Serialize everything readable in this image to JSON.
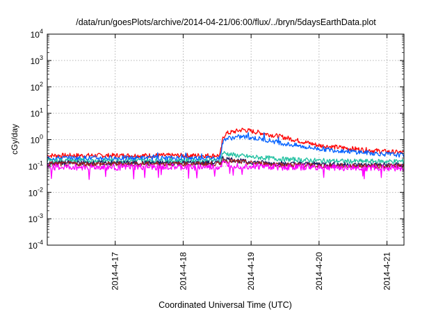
{
  "chart_data": {
    "type": "line",
    "title": "/data/run/goesPlots/archive/2014-04-21/06:00/flux/../bryn/5daysEarthData.plot",
    "xlabel": "Coordinated Universal Time (UTC)",
    "ylabel": "cGy/day",
    "yscale": "log",
    "ylim": [
      0.0001,
      10000
    ],
    "xlim": [
      "2014-04-16 00:00",
      "2014-04-21 06:00"
    ],
    "grid": true,
    "y_ticks": [
      {
        "value": 0.0001,
        "base": "10",
        "exp": "-4"
      },
      {
        "value": 0.001,
        "base": "10",
        "exp": "-3"
      },
      {
        "value": 0.01,
        "base": "10",
        "exp": "-2"
      },
      {
        "value": 0.1,
        "base": "10",
        "exp": "-1"
      },
      {
        "value": 1,
        "base": "10",
        "exp": "0"
      },
      {
        "value": 10,
        "base": "10",
        "exp": "1"
      },
      {
        "value": 100,
        "base": "10",
        "exp": "2"
      },
      {
        "value": 1000,
        "base": "10",
        "exp": "3"
      },
      {
        "value": 10000,
        "base": "10",
        "exp": "4"
      }
    ],
    "x_ticks": [
      {
        "value": "2014-04-17 00:00",
        "label": "2014-4-17"
      },
      {
        "value": "2014-04-18 00:00",
        "label": "2014-4-18"
      },
      {
        "value": "2014-04-19 00:00",
        "label": "2014-4-19"
      },
      {
        "value": "2014-04-20 00:00",
        "label": "2014-4-20"
      },
      {
        "value": "2014-04-21 00:00",
        "label": "2014-4-21"
      }
    ],
    "series": [
      {
        "color": "#ff0000",
        "x": [
          "2014-04-16 00:00",
          "2014-04-17 00:00",
          "2014-04-18 00:00",
          "2014-04-18 13:00",
          "2014-04-18 14:00",
          "2014-04-18 15:00",
          "2014-04-18 18:00",
          "2014-04-18 21:00",
          "2014-04-19 00:00",
          "2014-04-19 06:00",
          "2014-04-19 12:00",
          "2014-04-19 18:00",
          "2014-04-20 00:00",
          "2014-04-20 12:00",
          "2014-04-21 00:00",
          "2014-04-21 06:00"
        ],
        "y": [
          0.25,
          0.25,
          0.25,
          0.25,
          1.1,
          1.7,
          2.0,
          2.4,
          2.1,
          1.6,
          1.2,
          0.85,
          0.6,
          0.45,
          0.35,
          0.32
        ]
      },
      {
        "color": "#0060ff",
        "x": [
          "2014-04-16 00:00",
          "2014-04-17 00:00",
          "2014-04-18 00:00",
          "2014-04-18 13:00",
          "2014-04-18 14:00",
          "2014-04-18 15:00",
          "2014-04-18 18:00",
          "2014-04-18 21:00",
          "2014-04-19 00:00",
          "2014-04-19 06:00",
          "2014-04-19 12:00",
          "2014-04-19 18:00",
          "2014-04-20 00:00",
          "2014-04-20 12:00",
          "2014-04-21 00:00",
          "2014-04-21 06:00"
        ],
        "y": [
          0.2,
          0.2,
          0.2,
          0.2,
          0.8,
          1.1,
          1.2,
          1.3,
          1.2,
          0.95,
          0.7,
          0.55,
          0.45,
          0.35,
          0.28,
          0.26
        ]
      },
      {
        "color": "#20c0a0",
        "x": [
          "2014-04-16 00:00",
          "2014-04-17 00:00",
          "2014-04-18 00:00",
          "2014-04-18 13:00",
          "2014-04-18 14:00",
          "2014-04-18 15:00",
          "2014-04-18 18:00",
          "2014-04-18 21:00",
          "2014-04-19 00:00",
          "2014-04-19 06:00",
          "2014-04-19 12:00",
          "2014-04-19 18:00",
          "2014-04-20 00:00",
          "2014-04-20 12:00",
          "2014-04-21 00:00",
          "2014-04-21 06:00"
        ],
        "y": [
          0.16,
          0.16,
          0.16,
          0.16,
          0.32,
          0.3,
          0.26,
          0.24,
          0.22,
          0.2,
          0.18,
          0.17,
          0.16,
          0.15,
          0.15,
          0.15
        ]
      },
      {
        "color": "#1a1a60",
        "x": [
          "2014-04-16 00:00",
          "2014-04-17 00:00",
          "2014-04-18 00:00",
          "2014-04-18 13:00",
          "2014-04-18 14:00",
          "2014-04-18 15:00",
          "2014-04-18 18:00",
          "2014-04-18 21:00",
          "2014-04-19 00:00",
          "2014-04-19 06:00",
          "2014-04-19 12:00",
          "2014-04-19 18:00",
          "2014-04-20 00:00",
          "2014-04-20 12:00",
          "2014-04-21 00:00",
          "2014-04-21 06:00"
        ],
        "y": [
          0.13,
          0.13,
          0.13,
          0.13,
          0.2,
          0.19,
          0.17,
          0.15,
          0.14,
          0.13,
          0.12,
          0.12,
          0.12,
          0.11,
          0.11,
          0.11
        ]
      },
      {
        "color": "#a02020",
        "x": [
          "2014-04-16 00:00",
          "2014-04-17 00:00",
          "2014-04-18 00:00",
          "2014-04-18 13:00",
          "2014-04-18 14:00",
          "2014-04-18 15:00",
          "2014-04-18 18:00",
          "2014-04-18 21:00",
          "2014-04-19 00:00",
          "2014-04-19 06:00",
          "2014-04-19 12:00",
          "2014-04-19 18:00",
          "2014-04-20 00:00",
          "2014-04-20 12:00",
          "2014-04-21 00:00",
          "2014-04-21 06:00"
        ],
        "y": [
          0.12,
          0.12,
          0.12,
          0.12,
          0.17,
          0.16,
          0.15,
          0.14,
          0.13,
          0.12,
          0.11,
          0.11,
          0.1,
          0.1,
          0.1,
          0.1
        ]
      },
      {
        "color": "#ff00ff",
        "x": [
          "2014-04-16 00:00",
          "2014-04-17 00:00",
          "2014-04-18 00:00",
          "2014-04-18 13:00",
          "2014-04-18 14:00",
          "2014-04-18 15:00",
          "2014-04-18 18:00",
          "2014-04-18 21:00",
          "2014-04-19 00:00",
          "2014-04-19 06:00",
          "2014-04-19 12:00",
          "2014-04-19 18:00",
          "2014-04-20 00:00",
          "2014-04-20 12:00",
          "2014-04-21 00:00",
          "2014-04-21 06:00"
        ],
        "y": [
          0.09,
          0.09,
          0.09,
          0.09,
          0.13,
          0.12,
          0.11,
          0.1,
          0.1,
          0.095,
          0.09,
          0.09,
          0.09,
          0.085,
          0.085,
          0.085
        ]
      }
    ]
  }
}
